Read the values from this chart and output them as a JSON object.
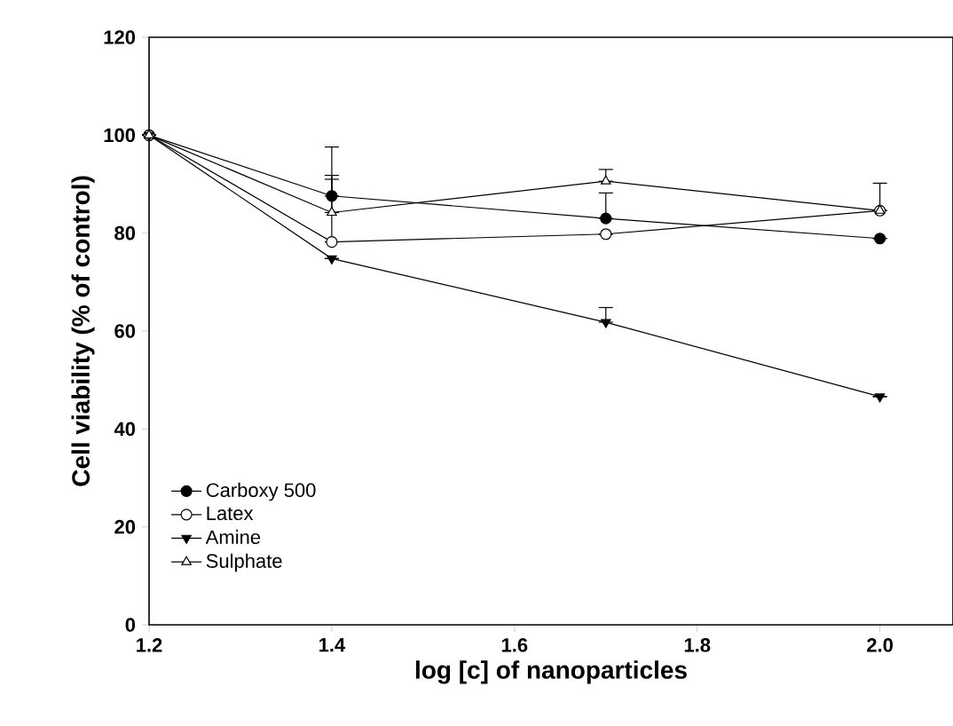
{
  "chart_data": {
    "type": "line",
    "xlabel": "log [c] of nanoparticles",
    "ylabel": "Cell viability (% of control)",
    "xlim": [
      1.2,
      2.08
    ],
    "ylim": [
      0,
      120
    ],
    "xticks": [
      {
        "value": 1.2,
        "label": "1.2"
      },
      {
        "value": 1.4,
        "label": "1.4"
      },
      {
        "value": 1.6,
        "label": "1.6"
      },
      {
        "value": 1.8,
        "label": "1.8"
      },
      {
        "value": 2.0,
        "label": "2.0"
      }
    ],
    "yticks": [
      0,
      20,
      40,
      60,
      80,
      100,
      120
    ],
    "grid": false,
    "legend": "bottom left",
    "series": [
      {
        "name": "Carboxy 500",
        "color": "#000000",
        "marker": "circle",
        "x": [
          1.2,
          1.4,
          1.7,
          2.0
        ],
        "values": [
          100,
          87.6,
          83,
          78.9
        ],
        "errors": [
          null,
          [
            87.6,
            97.6
          ],
          [
            83,
            88.2
          ],
          null
        ]
      },
      {
        "name": "Latex",
        "color": "#000000",
        "marker": "circle",
        "x": [
          1.2,
          1.4,
          1.7,
          2.0
        ],
        "values": [
          100,
          78.2,
          79.8,
          84.6
        ],
        "errors": [
          null,
          [
            78.2,
            91
          ],
          null,
          null
        ]
      },
      {
        "name": "Amine",
        "color": "#000000",
        "marker": "triangle_down",
        "x": [
          1.2,
          1.4,
          1.7,
          2.0
        ],
        "values": [
          100,
          74.8,
          61.8,
          46.6
        ],
        "errors": [
          null,
          null,
          [
            61.8,
            64.8
          ],
          null
        ]
      },
      {
        "name": "Sulphate",
        "color": "#000000",
        "marker": "triangle",
        "x": [
          1.2,
          1.4,
          1.7,
          2.0
        ],
        "values": [
          100,
          84.2,
          90.6,
          84.6
        ],
        "errors": [
          null,
          [
            84.2,
            91.8
          ],
          [
            90.6,
            93
          ],
          [
            84.6,
            90.2
          ]
        ]
      }
    ]
  }
}
